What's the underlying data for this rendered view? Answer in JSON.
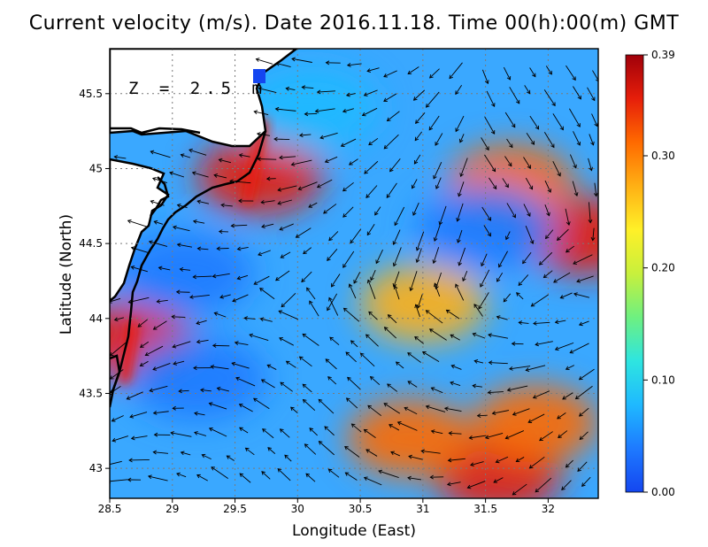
{
  "title": "Current velocity (m/s). Date 2016.11.18. Time 00(h):00(m) GMT",
  "depth_label": "Z = 2.5 m",
  "x_axis": {
    "label": "Longitude (East)",
    "ticks": [
      "28.5",
      "29",
      "29.5",
      "30",
      "30.5",
      "31",
      "31.5",
      "32"
    ],
    "range": [
      28.5,
      32.4
    ]
  },
  "y_axis": {
    "label": "Latitude (North)",
    "ticks": [
      "43",
      "43.5",
      "44",
      "44.5",
      "45",
      "45.5"
    ],
    "range": [
      42.8,
      45.8
    ]
  },
  "colorbar": {
    "ticks": [
      "0.00",
      "0.10",
      "0.20",
      "0.30",
      "0.39"
    ],
    "min": 0.0,
    "max": 0.39,
    "colors": [
      "#1446f0",
      "#1e7aff",
      "#1fb9ff",
      "#2ee5e0",
      "#6ef080",
      "#c8f03c",
      "#fff028",
      "#ffb014",
      "#ff6a00",
      "#e61e0a",
      "#a0000a"
    ]
  },
  "chart_data": {
    "type": "heatmap",
    "title": "Current velocity (m/s). Date 2016.11.18. Time 00(h):00(m) GMT",
    "xlabel": "Longitude (East)",
    "ylabel": "Latitude (North)",
    "xlim": [
      28.5,
      32.4
    ],
    "ylim": [
      42.8,
      45.8
    ],
    "units": "m/s",
    "depth": "Z = 2.5 m",
    "grid": true,
    "speed_hotspots": [
      {
        "lon": 29.7,
        "lat": 44.95,
        "speed": 0.35
      },
      {
        "lon": 28.65,
        "lat": 43.85,
        "speed": 0.35
      },
      {
        "lon": 32.3,
        "lat": 44.55,
        "speed": 0.36
      },
      {
        "lon": 31.7,
        "lat": 44.9,
        "speed": 0.33
      },
      {
        "lon": 31.0,
        "lat": 44.1,
        "speed": 0.27
      },
      {
        "lon": 31.6,
        "lat": 42.95,
        "speed": 0.37
      },
      {
        "lon": 30.9,
        "lat": 43.2,
        "speed": 0.3
      },
      {
        "lon": 31.9,
        "lat": 43.3,
        "speed": 0.31
      },
      {
        "lon": 29.2,
        "lat": 43.6,
        "speed": 0.02
      },
      {
        "lon": 29.1,
        "lat": 44.3,
        "speed": 0.05
      },
      {
        "lon": 30.1,
        "lat": 45.4,
        "speed": 0.06
      },
      {
        "lon": 31.5,
        "lat": 44.6,
        "speed": 0.05
      }
    ]
  }
}
